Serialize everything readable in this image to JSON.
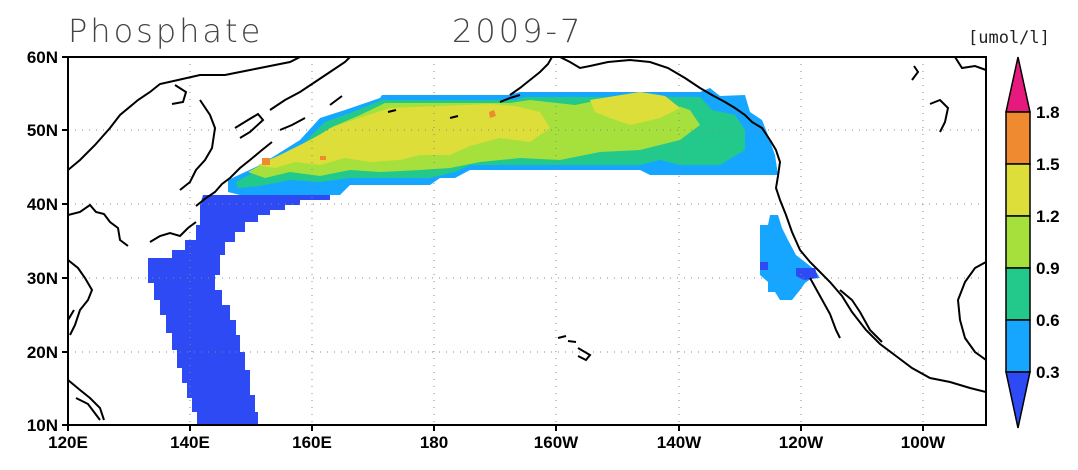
{
  "title": {
    "variable": "Phosphate",
    "date": "2009-7"
  },
  "colorbar": {
    "unit": "[umol/l]",
    "levels": [
      "1.8",
      "1.5",
      "1.2",
      "0.9",
      "0.6",
      "0.3"
    ],
    "colors": [
      "#e6197f",
      "#ef8a30",
      "#dede3a",
      "#a5e03c",
      "#22c98a",
      "#17a6ff",
      "#2d4af5"
    ]
  },
  "axes": {
    "x_ticks": [
      "120E",
      "140E",
      "160E",
      "180",
      "160W",
      "140W",
      "120W",
      "100W"
    ],
    "y_ticks": [
      "60N",
      "50N",
      "40N",
      "30N",
      "20N",
      "10N"
    ]
  },
  "map": {
    "region": "North Pacific",
    "lon_range": [
      "120E",
      "90W"
    ],
    "lat_range": [
      "10N",
      "60N"
    ],
    "grid": "dotted"
  }
}
